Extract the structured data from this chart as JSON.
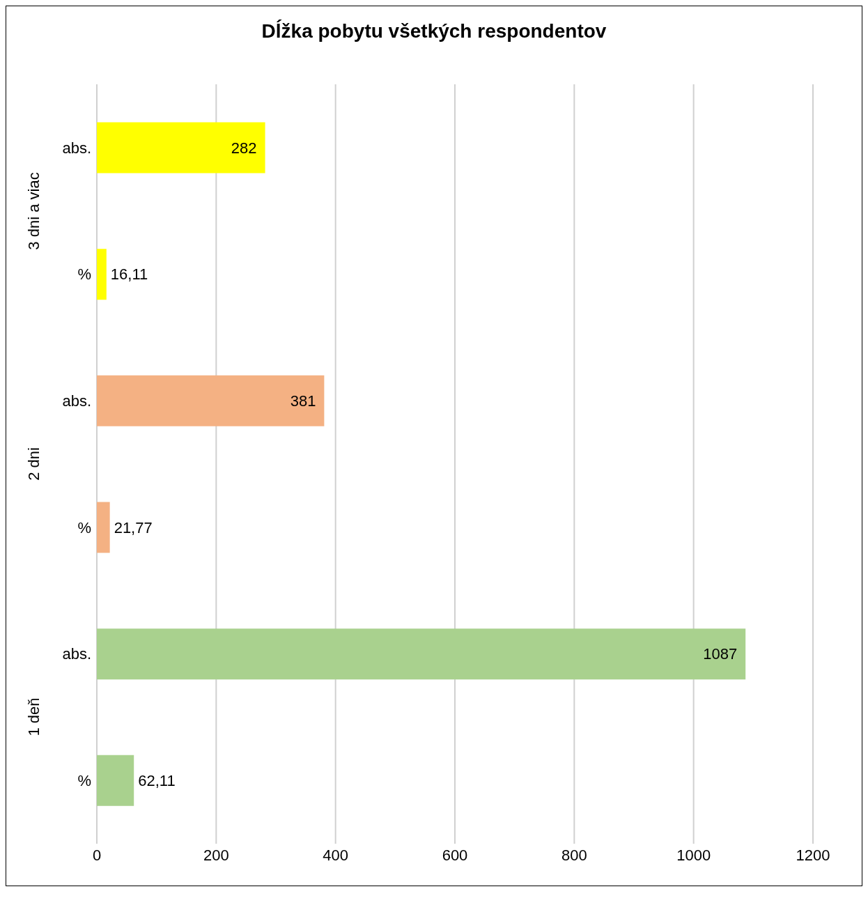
{
  "chart_data": {
    "type": "bar",
    "orientation": "horizontal",
    "title": "Dĺžka pobytu všetkých respondentov",
    "categories": [
      "abs.",
      "%",
      "abs.",
      "%",
      "abs.",
      "%"
    ],
    "values": [
      282,
      16.11,
      381,
      21.77,
      1087,
      62.11
    ],
    "colors": [
      "#ffff00",
      "#ffff00",
      "#f4b183",
      "#f4b183",
      "#a9d18e",
      "#a9d18e"
    ],
    "value_labels": [
      "282",
      "16,11",
      "381",
      "21,77",
      "1087",
      "62,11"
    ],
    "annotations": [
      "3 dni a viac",
      "2 dni",
      "1 deň"
    ],
    "xlim": [
      0,
      1200
    ],
    "xticks": [
      0,
      200,
      400,
      600,
      800,
      1000,
      1200
    ],
    "grid": "x"
  }
}
